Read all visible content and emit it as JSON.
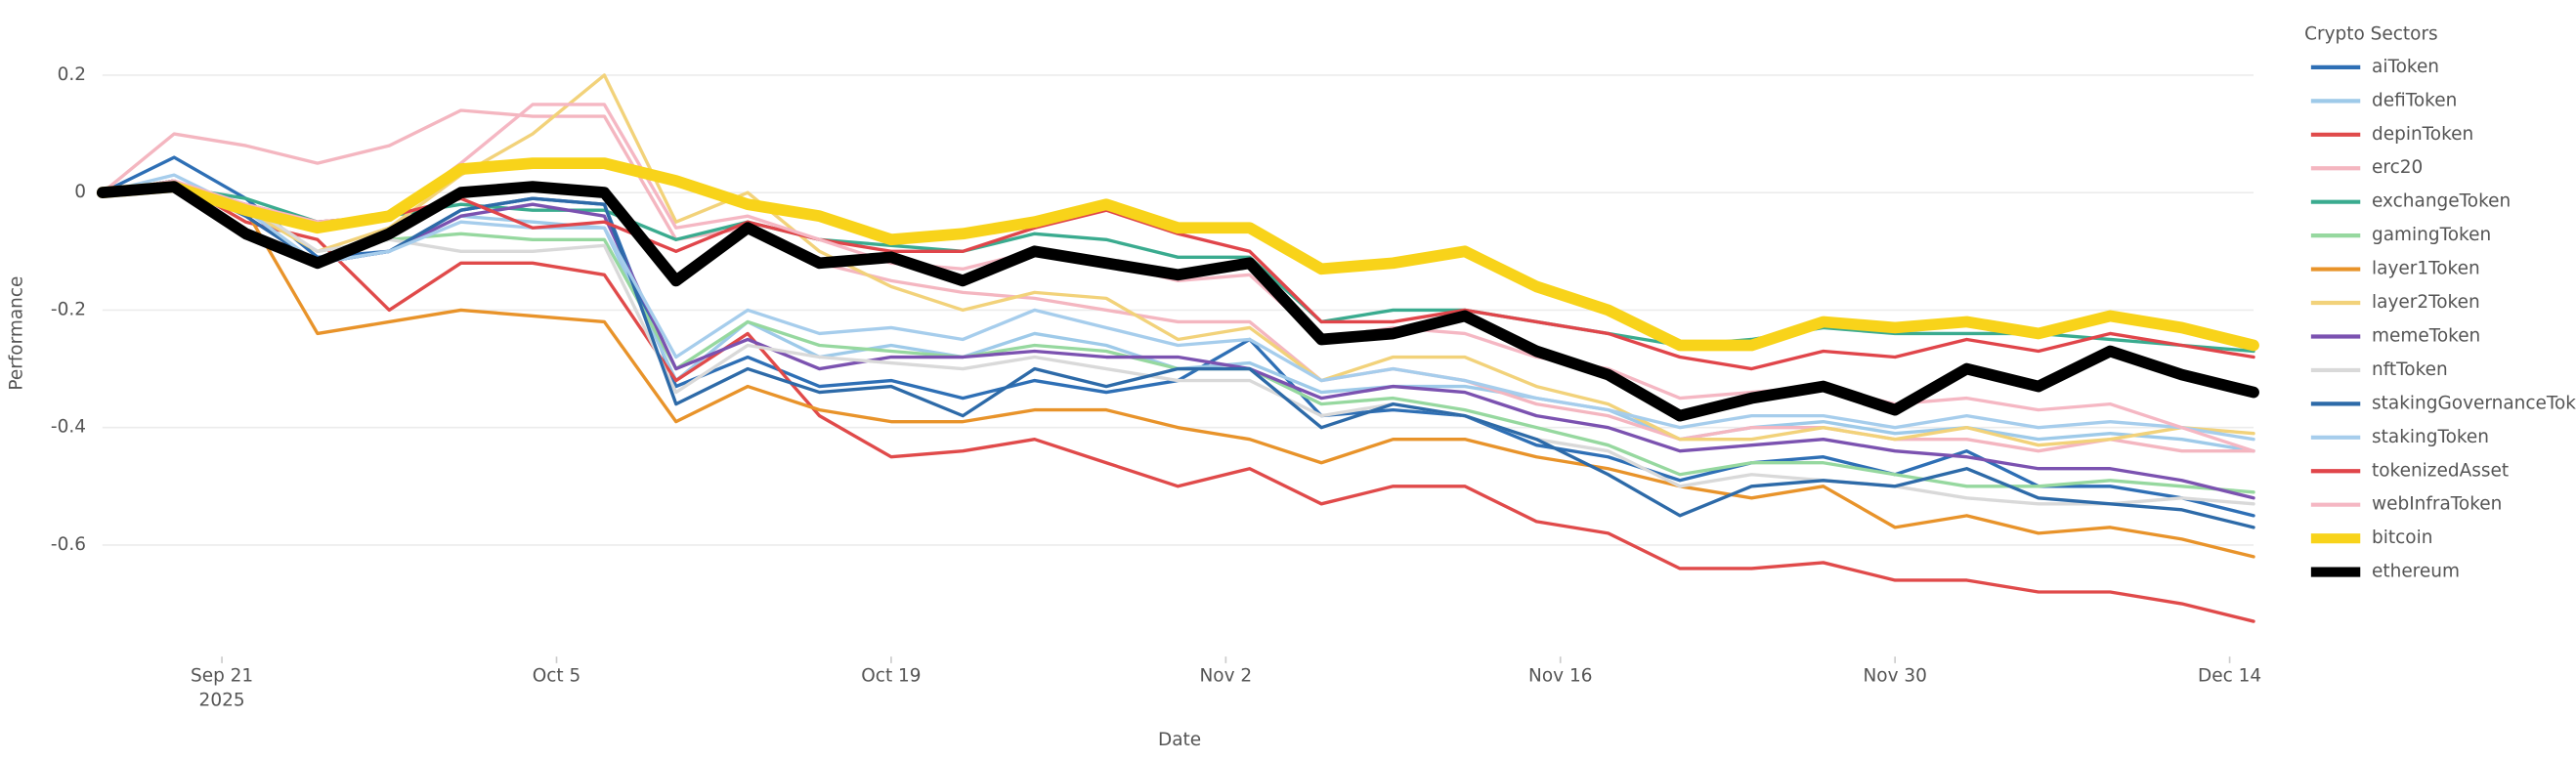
{
  "chart_data": {
    "type": "line",
    "x_label": "Date",
    "y_label": "Performance",
    "legend_title": "Crypto Sectors",
    "legend_position": "right",
    "grid": true,
    "x": [
      "2025-09-16",
      "2025-09-19",
      "2025-09-22",
      "2025-09-25",
      "2025-09-28",
      "2025-10-01",
      "2025-10-04",
      "2025-10-07",
      "2025-10-10",
      "2025-10-13",
      "2025-10-16",
      "2025-10-19",
      "2025-10-22",
      "2025-10-25",
      "2025-10-28",
      "2025-10-31",
      "2025-11-03",
      "2025-11-06",
      "2025-11-09",
      "2025-11-12",
      "2025-11-15",
      "2025-11-18",
      "2025-11-21",
      "2025-11-24",
      "2025-11-27",
      "2025-11-30",
      "2025-12-03",
      "2025-12-06",
      "2025-12-09",
      "2025-12-12",
      "2025-12-15"
    ],
    "xlim": [
      "2025-09-16",
      "2025-12-15"
    ],
    "xticks": [
      {
        "value": "2025-09-21",
        "label": "Sep 21\n2025"
      },
      {
        "value": "2025-10-05",
        "label": "Oct 5"
      },
      {
        "value": "2025-10-19",
        "label": "Oct 19"
      },
      {
        "value": "2025-11-02",
        "label": "Nov 2"
      },
      {
        "value": "2025-11-16",
        "label": "Nov 16"
      },
      {
        "value": "2025-11-30",
        "label": "Nov 30"
      },
      {
        "value": "2025-12-14",
        "label": "Dec 14"
      }
    ],
    "ylim": [
      -0.79,
      0.3
    ],
    "yticks": [
      0.2,
      0,
      -0.2,
      -0.4,
      -0.6
    ],
    "series": [
      {
        "name": "aiToken",
        "color": "#2e6fb5",
        "values": [
          0,
          0.06,
          -0.01,
          -0.11,
          -0.1,
          -0.03,
          -0.01,
          -0.02,
          -0.33,
          -0.28,
          -0.33,
          -0.32,
          -0.35,
          -0.32,
          -0.34,
          -0.32,
          -0.25,
          -0.38,
          -0.37,
          -0.38,
          -0.43,
          -0.45,
          -0.49,
          -0.46,
          -0.45,
          -0.48,
          -0.44,
          -0.5,
          -0.5,
          -0.52,
          -0.55
        ]
      },
      {
        "name": "defiToken",
        "color": "#9ecae9",
        "values": [
          0,
          0.02,
          -0.04,
          -0.12,
          -0.1,
          -0.04,
          -0.05,
          -0.06,
          -0.32,
          -0.22,
          -0.28,
          -0.26,
          -0.28,
          -0.24,
          -0.26,
          -0.3,
          -0.29,
          -0.34,
          -0.33,
          -0.33,
          -0.35,
          -0.37,
          -0.42,
          -0.4,
          -0.39,
          -0.41,
          -0.4,
          -0.42,
          -0.41,
          -0.42,
          -0.44
        ]
      },
      {
        "name": "depinToken",
        "color": "#e04a4a",
        "values": [
          0,
          0.02,
          -0.05,
          -0.08,
          -0.2,
          -0.12,
          -0.12,
          -0.14,
          -0.32,
          -0.24,
          -0.38,
          -0.45,
          -0.44,
          -0.42,
          -0.46,
          -0.5,
          -0.47,
          -0.53,
          -0.5,
          -0.5,
          -0.56,
          -0.58,
          -0.64,
          -0.64,
          -0.63,
          -0.66,
          -0.66,
          -0.68,
          -0.68,
          -0.7,
          -0.73
        ]
      },
      {
        "name": "erc20",
        "color": "#f4b6c0",
        "values": [
          0,
          0.1,
          0.08,
          0.05,
          0.08,
          0.14,
          0.13,
          0.13,
          -0.08,
          -0.06,
          -0.12,
          -0.15,
          -0.17,
          -0.18,
          -0.2,
          -0.22,
          -0.22,
          -0.32,
          -0.3,
          -0.32,
          -0.36,
          -0.38,
          -0.42,
          -0.4,
          -0.4,
          -0.42,
          -0.42,
          -0.44,
          -0.42,
          -0.44,
          -0.44
        ]
      },
      {
        "name": "exchangeToken",
        "color": "#3aab8f",
        "values": [
          0,
          0.01,
          -0.01,
          -0.05,
          -0.04,
          -0.02,
          -0.03,
          -0.03,
          -0.08,
          -0.05,
          -0.08,
          -0.09,
          -0.1,
          -0.07,
          -0.08,
          -0.11,
          -0.11,
          -0.22,
          -0.2,
          -0.2,
          -0.22,
          -0.24,
          -0.26,
          -0.25,
          -0.23,
          -0.24,
          -0.24,
          -0.24,
          -0.25,
          -0.26,
          -0.27
        ]
      },
      {
        "name": "gamingToken",
        "color": "#96d89f",
        "values": [
          0,
          0.01,
          -0.03,
          -0.1,
          -0.08,
          -0.07,
          -0.08,
          -0.08,
          -0.3,
          -0.22,
          -0.26,
          -0.27,
          -0.28,
          -0.26,
          -0.27,
          -0.3,
          -0.3,
          -0.36,
          -0.35,
          -0.37,
          -0.4,
          -0.43,
          -0.48,
          -0.46,
          -0.46,
          -0.48,
          -0.5,
          -0.5,
          -0.49,
          -0.5,
          -0.51
        ]
      },
      {
        "name": "layer1Token",
        "color": "#e8932a",
        "values": [
          0,
          0.02,
          -0.03,
          -0.24,
          -0.22,
          -0.2,
          -0.21,
          -0.22,
          -0.39,
          -0.33,
          -0.37,
          -0.39,
          -0.39,
          -0.37,
          -0.37,
          -0.4,
          -0.42,
          -0.46,
          -0.42,
          -0.42,
          -0.45,
          -0.47,
          -0.5,
          -0.52,
          -0.5,
          -0.57,
          -0.55,
          -0.58,
          -0.57,
          -0.59,
          -0.62
        ]
      },
      {
        "name": "layer2Token",
        "color": "#f2d27a",
        "values": [
          0,
          0.02,
          -0.03,
          -0.1,
          -0.06,
          0.03,
          0.1,
          0.2,
          -0.05,
          0,
          -0.1,
          -0.16,
          -0.2,
          -0.17,
          -0.18,
          -0.25,
          -0.23,
          -0.32,
          -0.28,
          -0.28,
          -0.33,
          -0.36,
          -0.42,
          -0.42,
          -0.4,
          -0.42,
          -0.4,
          -0.43,
          -0.42,
          -0.4,
          -0.41
        ]
      },
      {
        "name": "memeToken",
        "color": "#7b52b0",
        "values": [
          0,
          0.02,
          -0.04,
          -0.12,
          -0.1,
          -0.04,
          -0.02,
          -0.04,
          -0.3,
          -0.25,
          -0.3,
          -0.28,
          -0.28,
          -0.27,
          -0.28,
          -0.28,
          -0.3,
          -0.35,
          -0.33,
          -0.34,
          -0.38,
          -0.4,
          -0.44,
          -0.43,
          -0.42,
          -0.44,
          -0.45,
          -0.47,
          -0.47,
          -0.49,
          -0.52
        ]
      },
      {
        "name": "nftToken",
        "color": "#d9d9d9",
        "values": [
          0,
          0.01,
          -0.02,
          -0.1,
          -0.08,
          -0.1,
          -0.1,
          -0.09,
          -0.34,
          -0.26,
          -0.28,
          -0.29,
          -0.3,
          -0.28,
          -0.3,
          -0.32,
          -0.32,
          -0.38,
          -0.36,
          -0.38,
          -0.42,
          -0.44,
          -0.5,
          -0.48,
          -0.49,
          -0.5,
          -0.52,
          -0.53,
          -0.53,
          -0.52,
          -0.53
        ]
      },
      {
        "name": "stakingGovernanceToken",
        "color": "#2d6aa8",
        "values": [
          0,
          0.02,
          -0.04,
          -0.12,
          -0.1,
          -0.03,
          -0.01,
          -0.02,
          -0.36,
          -0.3,
          -0.34,
          -0.33,
          -0.38,
          -0.3,
          -0.33,
          -0.3,
          -0.3,
          -0.4,
          -0.36,
          -0.38,
          -0.42,
          -0.48,
          -0.55,
          -0.5,
          -0.49,
          -0.5,
          -0.47,
          -0.52,
          -0.53,
          -0.54,
          -0.57
        ]
      },
      {
        "name": "stakingToken",
        "color": "#a6cdec",
        "values": [
          0,
          0.03,
          -0.03,
          -0.12,
          -0.1,
          -0.05,
          -0.06,
          -0.06,
          -0.28,
          -0.2,
          -0.24,
          -0.23,
          -0.25,
          -0.2,
          -0.23,
          -0.26,
          -0.25,
          -0.32,
          -0.3,
          -0.32,
          -0.35,
          -0.37,
          -0.4,
          -0.38,
          -0.38,
          -0.4,
          -0.38,
          -0.4,
          -0.39,
          -0.4,
          -0.42
        ]
      },
      {
        "name": "tokenizedAsset",
        "color": "#e0454a",
        "values": [
          0,
          0.01,
          -0.02,
          -0.05,
          -0.04,
          -0.01,
          -0.06,
          -0.05,
          -0.1,
          -0.05,
          -0.08,
          -0.1,
          -0.1,
          -0.06,
          -0.03,
          -0.07,
          -0.1,
          -0.22,
          -0.22,
          -0.2,
          -0.22,
          -0.24,
          -0.28,
          -0.3,
          -0.27,
          -0.28,
          -0.25,
          -0.27,
          -0.24,
          -0.26,
          -0.28
        ]
      },
      {
        "name": "webInfraToken",
        "color": "#f5b7c3",
        "values": [
          0,
          0.02,
          -0.02,
          -0.05,
          -0.04,
          0.05,
          0.15,
          0.15,
          -0.06,
          -0.04,
          -0.08,
          -0.12,
          -0.13,
          -0.1,
          -0.12,
          -0.15,
          -0.14,
          -0.25,
          -0.23,
          -0.24,
          -0.28,
          -0.3,
          -0.35,
          -0.34,
          -0.33,
          -0.36,
          -0.35,
          -0.37,
          -0.36,
          -0.4,
          -0.44
        ]
      },
      {
        "name": "bitcoin",
        "color": "#f8d31a",
        "width": 7,
        "values": [
          0,
          0.01,
          -0.03,
          -0.06,
          -0.04,
          0.04,
          0.05,
          0.05,
          0.02,
          -0.02,
          -0.04,
          -0.08,
          -0.07,
          -0.05,
          -0.02,
          -0.06,
          -0.06,
          -0.13,
          -0.12,
          -0.1,
          -0.16,
          -0.2,
          -0.26,
          -0.26,
          -0.22,
          -0.23,
          -0.22,
          -0.24,
          -0.21,
          -0.23,
          -0.26
        ]
      },
      {
        "name": "ethereum",
        "color": "#000000",
        "width": 7,
        "values": [
          0,
          0.01,
          -0.07,
          -0.12,
          -0.07,
          0,
          0.01,
          0,
          -0.15,
          -0.06,
          -0.12,
          -0.11,
          -0.15,
          -0.1,
          -0.12,
          -0.14,
          -0.12,
          -0.25,
          -0.24,
          -0.21,
          -0.27,
          -0.31,
          -0.38,
          -0.35,
          -0.33,
          -0.37,
          -0.3,
          -0.33,
          -0.27,
          -0.31,
          -0.34
        ]
      }
    ]
  }
}
